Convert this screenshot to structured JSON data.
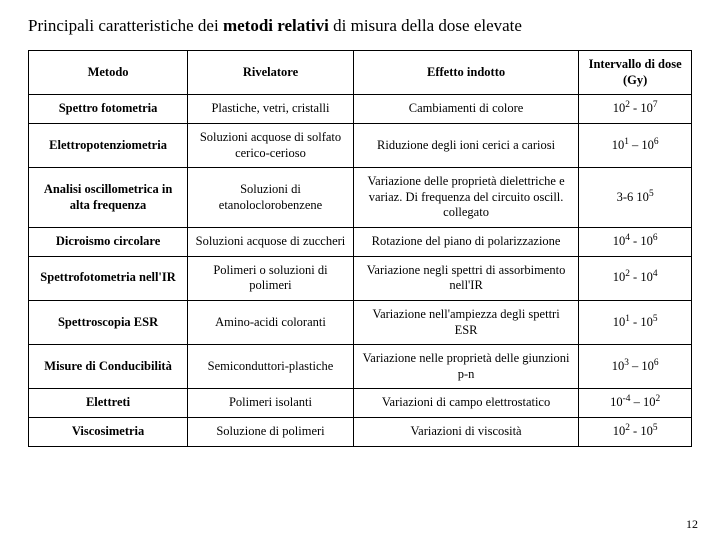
{
  "title_pre": "Principali caratteristiche dei ",
  "title_bold": "metodi relativi",
  "title_post": " di misura della dose elevate",
  "page_number": "12",
  "table": {
    "headers": [
      "Metodo",
      "Rivelatore",
      "Effetto indotto",
      "Intervallo di dose (Gy)"
    ],
    "rows": [
      {
        "metodo": "Spettro fotometria",
        "riv": "Plastiche, vetri, cristalli",
        "eff": "Cambiamenti di colore",
        "dose": "10<sup>2</sup> - 10<sup>7</sup>"
      },
      {
        "metodo": "Elettropotenziometria",
        "riv": "Soluzioni acquose di solfato cerico-cerioso",
        "eff": "Riduzione degli ioni cerici a cariosi",
        "dose": "10<sup>1</sup> – 10<sup>6</sup>"
      },
      {
        "metodo": "Analisi oscillometrica in alta frequenza",
        "riv": "Soluzioni di etanoloclorobenzene",
        "eff": "Variazione delle proprietà dielettriche e variaz. Di frequenza del circuito oscill. collegato",
        "dose": "3-6 10<sup>5</sup>"
      },
      {
        "metodo": "Dicroismo circolare",
        "riv": "Soluzioni acquose di zuccheri",
        "eff": "Rotazione del piano di polarizzazione",
        "dose": "10<sup>4</sup> - 10<sup>6</sup>"
      },
      {
        "metodo": "Spettrofotometria nell'IR",
        "riv": "Polimeri o soluzioni di polimeri",
        "eff": "Variazione negli spettri di assorbimento nell'IR",
        "dose": "10<sup>2</sup> - 10<sup>4</sup>"
      },
      {
        "metodo": "Spettroscopia ESR",
        "riv": "Amino-acidi coloranti",
        "eff": "Variazione nell'ampiezza degli spettri ESR",
        "dose": "10<sup>1</sup> - 10<sup>5</sup>"
      },
      {
        "metodo": "Misure di Conducibilità",
        "riv": "Semiconduttori-plastiche",
        "eff": "Variazione nelle proprietà delle giunzioni p-n",
        "dose": "10<sup>3</sup> – 10<sup>6</sup>"
      },
      {
        "metodo": "Elettreti",
        "riv": "Polimeri isolanti",
        "eff": "Variazioni di campo elettrostatico",
        "dose": "10<sup>-4</sup> – 10<sup>2</sup>"
      },
      {
        "metodo": "Viscosimetria",
        "riv": "Soluzione di polimeri",
        "eff": "Variazioni di viscosità",
        "dose": "10<sup>2</sup> - 10<sup>5</sup>"
      }
    ]
  }
}
